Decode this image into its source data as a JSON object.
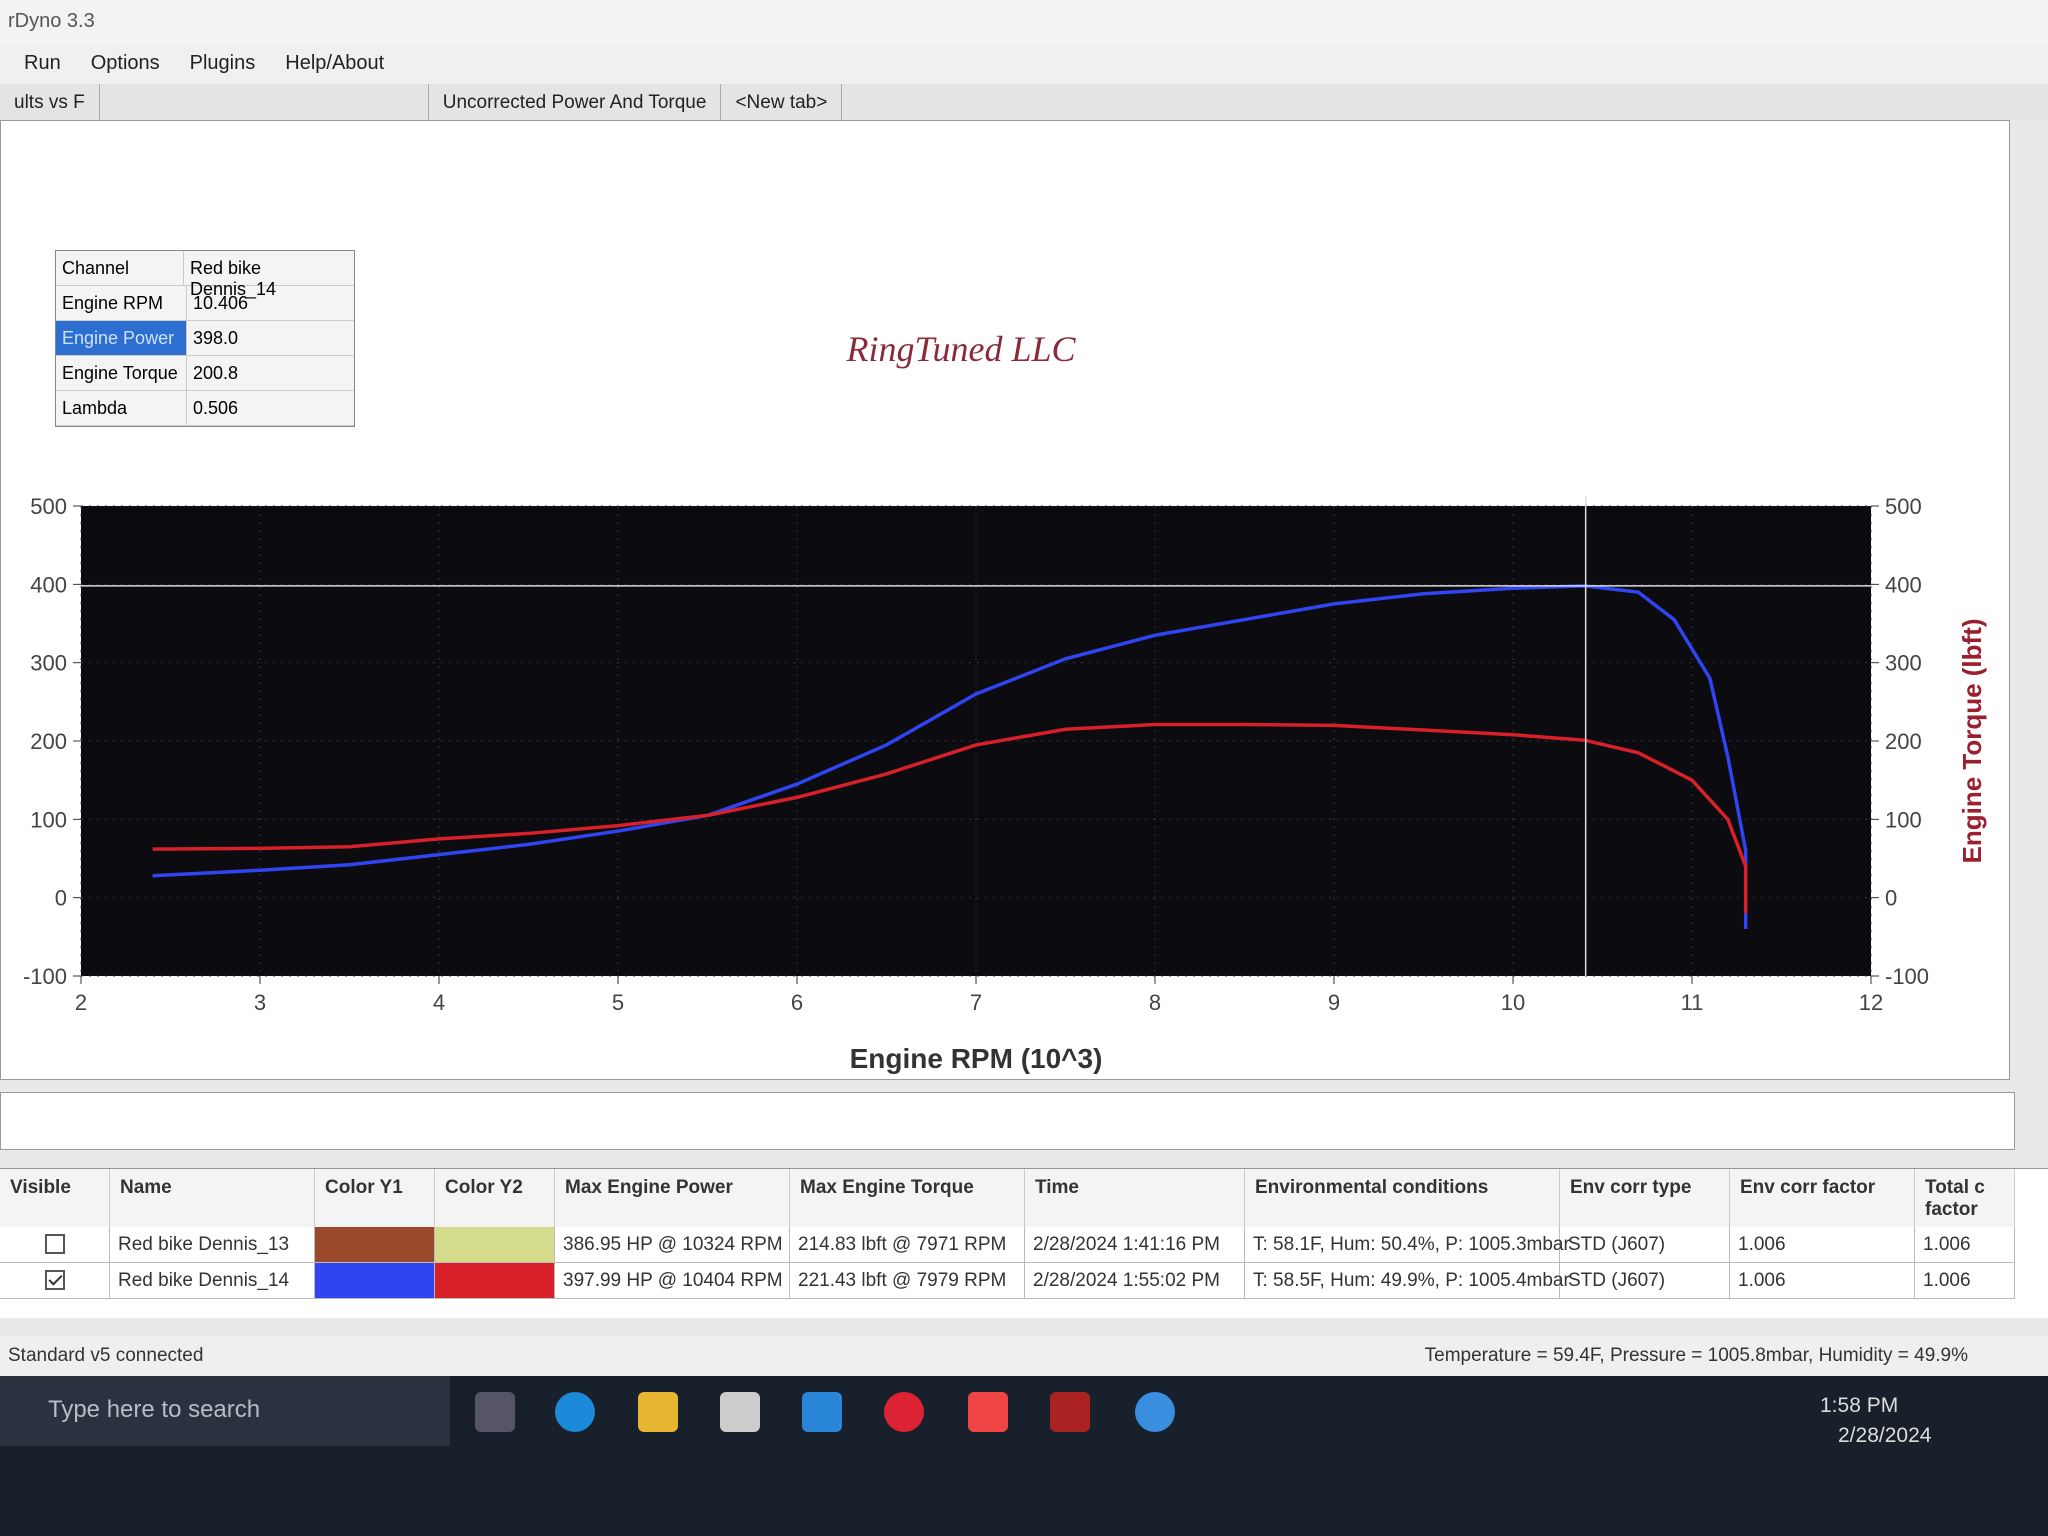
{
  "window": {
    "title": "rDyno 3.3"
  },
  "menu": [
    "Run",
    "Options",
    "Plugins",
    "Help/About"
  ],
  "tabs": [
    "ults vs F",
    "Uncorrected Power And Torque",
    "<New tab>"
  ],
  "tooltip": {
    "header": [
      "Channel",
      "Red bike Dennis_14"
    ],
    "rows": [
      {
        "label": "Engine RPM",
        "value": "10.406"
      },
      {
        "label": "Engine Power",
        "value": "398.0"
      },
      {
        "label": "Engine Torque",
        "value": "200.8"
      },
      {
        "label": "Lambda",
        "value": "0.506"
      }
    ]
  },
  "chart_data": {
    "type": "line",
    "title": "RingTuned LLC",
    "x_label": "Engine RPM (10^3)",
    "y2_label": "Engine Torque (lbft)",
    "xlim": [
      2,
      12
    ],
    "xticks": [
      2,
      3,
      4,
      5,
      6,
      7,
      8,
      9,
      10,
      11,
      12
    ],
    "ylim": [
      -100,
      500
    ],
    "yticks": [
      -100,
      0,
      100,
      200,
      300,
      400,
      500
    ],
    "y2lim": [
      -100,
      500
    ],
    "y2ticks": [
      -100,
      0,
      100,
      200,
      300,
      400,
      500
    ],
    "grid": true,
    "background": "#0b0b10",
    "series": [
      {
        "name": "Engine Power",
        "color": "#2f45f2",
        "axis": "y",
        "x": [
          2.4,
          3,
          3.5,
          4,
          4.5,
          5,
          5.5,
          6,
          6.5,
          7,
          7.5,
          8,
          8.5,
          9,
          9.5,
          10,
          10.4,
          10.7,
          10.9,
          11.1,
          11.2,
          11.3,
          11.3
        ],
        "values": [
          28,
          35,
          42,
          55,
          68,
          85,
          105,
          145,
          195,
          260,
          305,
          335,
          355,
          375,
          388,
          395,
          398,
          390,
          355,
          280,
          180,
          60,
          -40
        ]
      },
      {
        "name": "Engine Torque",
        "color": "#d8202a",
        "axis": "y2",
        "x": [
          2.4,
          3,
          3.5,
          4,
          4.5,
          5,
          5.5,
          6,
          6.5,
          7,
          7.5,
          8,
          8.5,
          9,
          9.5,
          10,
          10.4,
          10.7,
          11,
          11.2,
          11.3,
          11.3
        ],
        "values": [
          62,
          63,
          65,
          75,
          82,
          92,
          105,
          128,
          158,
          195,
          215,
          221,
          221,
          220,
          214,
          208,
          201,
          185,
          150,
          100,
          40,
          -20
        ]
      }
    ]
  },
  "table": {
    "columns": [
      "Visible",
      "Name",
      "Color Y1",
      "Color Y2",
      "Max Engine Power",
      "Max Engine Torque",
      "Time",
      "Environmental conditions",
      "Env corr type",
      "Env corr factor",
      "Total c factor"
    ],
    "rows": [
      {
        "visible": false,
        "name": "Red bike Dennis_13",
        "color_y1": "#9a4a2a",
        "color_y2": "#d4dc8c",
        "max_power": "386.95 HP @ 10324 RPM",
        "max_torque": "214.83 lbft @ 7971 RPM",
        "time": "2/28/2024 1:41:16 PM",
        "env": "T: 58.1F, Hum: 50.4%, P: 1005.3mbar",
        "env_type": "STD (J607)",
        "env_factor": "1.006",
        "total_factor": "1.006"
      },
      {
        "visible": true,
        "name": "Red bike Dennis_14",
        "color_y1": "#2f45f2",
        "color_y2": "#d8202a",
        "max_power": "397.99 HP @ 10404 RPM",
        "max_torque": "221.43 lbft @ 7979 RPM",
        "time": "2/28/2024 1:55:02 PM",
        "env": "T: 58.5F, Hum: 49.9%, P: 1005.4mbar",
        "env_type": "STD (J607)",
        "env_factor": "1.006",
        "total_factor": "1.006"
      }
    ]
  },
  "status": {
    "left": "Standard v5 connected",
    "right": "Temperature = 59.4F, Pressure = 1005.8mbar, Humidity = 49.9%"
  },
  "taskbar": {
    "search": "Type here to search",
    "time": "1:58 PM",
    "date": "2/28/2024"
  }
}
